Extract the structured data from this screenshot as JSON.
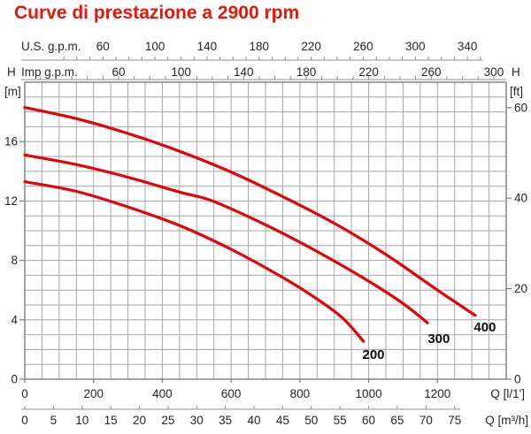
{
  "title": "Curve di prestazione a 2900 rpm",
  "colors": {
    "title": "#e8150b",
    "curve": "#e60208",
    "grid": "#a6a6a6",
    "frame": "#7d7d7d",
    "axis_line": "#8f8f8f",
    "text": "#262626",
    "curve_label_text": "#0d0d0d",
    "background": "#ffffff"
  },
  "chart_data": {
    "type": "line",
    "title": "Curve di prestazione a 2900 rpm",
    "x_axis_bottom_lmin": {
      "label": "Q [l/1']",
      "tick_labels": [
        0,
        200,
        400,
        600,
        800,
        1000,
        1200
      ],
      "range": [
        0,
        1400
      ],
      "minor_grid_step": 50
    },
    "x_axis_bottom_m3h": {
      "label": "Q [m³/h]",
      "tick_labels": [
        0,
        5,
        10,
        15,
        20,
        25,
        30,
        35,
        40,
        45,
        50,
        55,
        60,
        65,
        70,
        75
      ]
    },
    "x_axis_top_usgpm": {
      "label": "U.S. g.p.m.",
      "tick_labels": [
        60,
        100,
        140,
        180,
        220,
        260,
        300,
        340
      ],
      "minor_tick_step": 10
    },
    "x_axis_top_impgpm": {
      "label": "Imp g.p.m.",
      "tick_labels": [
        60,
        100,
        140,
        180,
        220,
        260,
        300
      ],
      "minor_tick_step": 10
    },
    "y_axis_left": {
      "name": "H",
      "unit": "[m]",
      "tick_labels": [
        0,
        4,
        8,
        12,
        16
      ],
      "range": [
        0,
        20
      ],
      "minor_grid_step": 1
    },
    "y_axis_right": {
      "name": "H",
      "unit": "[ft]",
      "tick_labels": [
        0,
        20,
        40,
        60
      ]
    },
    "grid": true,
    "series": [
      {
        "name": "400",
        "label": "400",
        "points_q_lmin_h_m": [
          [
            0,
            18.3
          ],
          [
            150,
            17.55
          ],
          [
            300,
            16.55
          ],
          [
            450,
            15.35
          ],
          [
            600,
            13.95
          ],
          [
            750,
            12.3
          ],
          [
            900,
            10.5
          ],
          [
            1050,
            8.4
          ],
          [
            1200,
            6.0
          ],
          [
            1310,
            4.3
          ]
        ],
        "label_at_q_h": [
          1338,
          3.5
        ]
      },
      {
        "name": "300",
        "label": "300",
        "points_q_lmin_h_m": [
          [
            0,
            15.1
          ],
          [
            150,
            14.45
          ],
          [
            300,
            13.6
          ],
          [
            450,
            12.6
          ],
          [
            546,
            12.0
          ],
          [
            700,
            10.4
          ],
          [
            850,
            8.6
          ],
          [
            1000,
            6.6
          ],
          [
            1100,
            5.1
          ],
          [
            1171,
            3.8
          ]
        ],
        "label_at_q_h": [
          1204,
          2.74
        ]
      },
      {
        "name": "200",
        "label": "200",
        "points_q_lmin_h_m": [
          [
            0,
            13.3
          ],
          [
            150,
            12.65
          ],
          [
            300,
            11.6
          ],
          [
            450,
            10.35
          ],
          [
            600,
            8.75
          ],
          [
            750,
            6.85
          ],
          [
            850,
            5.4
          ],
          [
            925,
            4.1
          ],
          [
            985,
            2.55
          ]
        ],
        "label_at_q_h": [
          1014,
          1.67
        ]
      }
    ]
  }
}
